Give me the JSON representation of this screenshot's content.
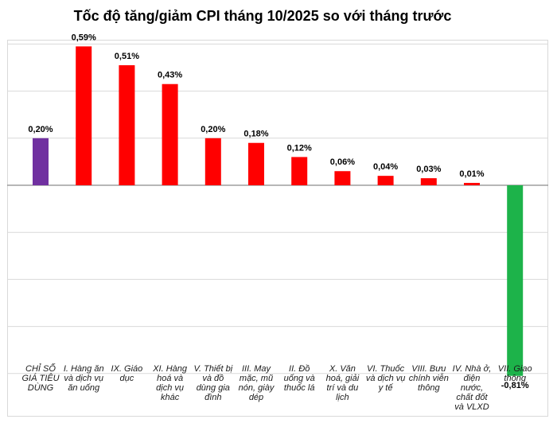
{
  "chart_data": {
    "type": "bar",
    "title": "Tốc độ tăng/giảm CPI tháng 10/2025 so với tháng trước",
    "xlabel": "",
    "ylabel": "",
    "ylim": [
      -0.8,
      0.6
    ],
    "grid": true,
    "categories": [
      "CHỈ SỐ GIÁ TIÊU DÙNG",
      "I. Hàng ăn và dịch vụ ăn uống",
      "IX. Giáo dục",
      "XI. Hàng hoá và dịch vụ khác",
      "V. Thiết bị và đồ dùng gia đình",
      "III. May mặc, mũ nón, giày dép",
      "II. Đồ uống và thuốc lá",
      "X. Văn hoá, giải trí và du lịch",
      "VI. Thuốc và dịch vụ y tế",
      "VIII. Bưu chính viễn thông",
      "IV. Nhà ở, điện nước, chất đốt và VLXD",
      "VII. Giao thông"
    ],
    "category_lines": [
      [
        "CHỈ SỐ",
        "GIÁ TIÊU",
        "DÙNG"
      ],
      [
        "I. Hàng ăn",
        "và dịch vụ",
        "ăn uống"
      ],
      [
        "IX. Giáo",
        "dục"
      ],
      [
        "XI. Hàng",
        "hoá và",
        "dịch vụ",
        "khác"
      ],
      [
        "V. Thiết bị",
        "và đồ",
        "dùng gia",
        "đình"
      ],
      [
        "III. May",
        "mặc, mũ",
        "nón, giày",
        "dép"
      ],
      [
        "II. Đồ",
        "uống và",
        "thuốc lá"
      ],
      [
        "X. Văn",
        "hoá, giải",
        "trí và du",
        "lịch"
      ],
      [
        "VI. Thuốc",
        "và dịch vụ",
        "y tế"
      ],
      [
        "VIII. Bưu",
        "chính viễn",
        "thông"
      ],
      [
        "IV. Nhà ở,",
        "điện",
        "nước,",
        "chất đốt",
        "và VLXD"
      ],
      [
        "VII. Giao",
        "thông"
      ]
    ],
    "values": [
      0.2,
      0.59,
      0.51,
      0.43,
      0.2,
      0.18,
      0.12,
      0.06,
      0.04,
      0.03,
      0.01,
      -0.81
    ],
    "value_labels": [
      "0,20%",
      "0,59%",
      "0,51%",
      "0,43%",
      "0,20%",
      "0,18%",
      "0,12%",
      "0,06%",
      "0,04%",
      "0,03%",
      "0,01%",
      "-0,81%"
    ],
    "colors": [
      "#7030a0",
      "#ff0000",
      "#ff0000",
      "#ff0000",
      "#ff0000",
      "#ff0000",
      "#ff0000",
      "#ff0000",
      "#ff0000",
      "#ff0000",
      "#ff0000",
      "#1db34a"
    ]
  }
}
